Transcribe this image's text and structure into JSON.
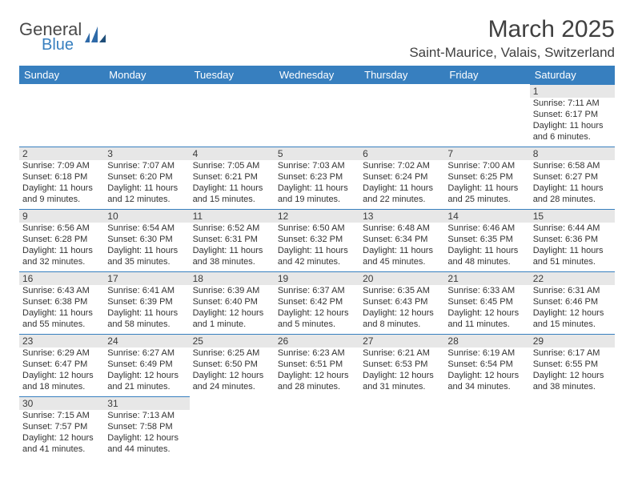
{
  "logo": {
    "primary": "General",
    "secondary": "Blue",
    "mark_color": "#2f6aa8"
  },
  "header": {
    "title": "March 2025",
    "location": "Saint-Maurice, Valais, Switzerland"
  },
  "colors": {
    "header_bg": "#377fbf",
    "header_text": "#ffffff",
    "day_shade": "#e7e7e7",
    "day_border": "#377fbf"
  },
  "weekdays": [
    "Sunday",
    "Monday",
    "Tuesday",
    "Wednesday",
    "Thursday",
    "Friday",
    "Saturday"
  ],
  "weeks": [
    [
      null,
      null,
      null,
      null,
      null,
      null,
      {
        "n": "1",
        "sunrise": "Sunrise: 7:11 AM",
        "sunset": "Sunset: 6:17 PM",
        "day": "Daylight: 11 hours and 6 minutes."
      }
    ],
    [
      {
        "n": "2",
        "sunrise": "Sunrise: 7:09 AM",
        "sunset": "Sunset: 6:18 PM",
        "day": "Daylight: 11 hours and 9 minutes."
      },
      {
        "n": "3",
        "sunrise": "Sunrise: 7:07 AM",
        "sunset": "Sunset: 6:20 PM",
        "day": "Daylight: 11 hours and 12 minutes."
      },
      {
        "n": "4",
        "sunrise": "Sunrise: 7:05 AM",
        "sunset": "Sunset: 6:21 PM",
        "day": "Daylight: 11 hours and 15 minutes."
      },
      {
        "n": "5",
        "sunrise": "Sunrise: 7:03 AM",
        "sunset": "Sunset: 6:23 PM",
        "day": "Daylight: 11 hours and 19 minutes."
      },
      {
        "n": "6",
        "sunrise": "Sunrise: 7:02 AM",
        "sunset": "Sunset: 6:24 PM",
        "day": "Daylight: 11 hours and 22 minutes."
      },
      {
        "n": "7",
        "sunrise": "Sunrise: 7:00 AM",
        "sunset": "Sunset: 6:25 PM",
        "day": "Daylight: 11 hours and 25 minutes."
      },
      {
        "n": "8",
        "sunrise": "Sunrise: 6:58 AM",
        "sunset": "Sunset: 6:27 PM",
        "day": "Daylight: 11 hours and 28 minutes."
      }
    ],
    [
      {
        "n": "9",
        "sunrise": "Sunrise: 6:56 AM",
        "sunset": "Sunset: 6:28 PM",
        "day": "Daylight: 11 hours and 32 minutes."
      },
      {
        "n": "10",
        "sunrise": "Sunrise: 6:54 AM",
        "sunset": "Sunset: 6:30 PM",
        "day": "Daylight: 11 hours and 35 minutes."
      },
      {
        "n": "11",
        "sunrise": "Sunrise: 6:52 AM",
        "sunset": "Sunset: 6:31 PM",
        "day": "Daylight: 11 hours and 38 minutes."
      },
      {
        "n": "12",
        "sunrise": "Sunrise: 6:50 AM",
        "sunset": "Sunset: 6:32 PM",
        "day": "Daylight: 11 hours and 42 minutes."
      },
      {
        "n": "13",
        "sunrise": "Sunrise: 6:48 AM",
        "sunset": "Sunset: 6:34 PM",
        "day": "Daylight: 11 hours and 45 minutes."
      },
      {
        "n": "14",
        "sunrise": "Sunrise: 6:46 AM",
        "sunset": "Sunset: 6:35 PM",
        "day": "Daylight: 11 hours and 48 minutes."
      },
      {
        "n": "15",
        "sunrise": "Sunrise: 6:44 AM",
        "sunset": "Sunset: 6:36 PM",
        "day": "Daylight: 11 hours and 51 minutes."
      }
    ],
    [
      {
        "n": "16",
        "sunrise": "Sunrise: 6:43 AM",
        "sunset": "Sunset: 6:38 PM",
        "day": "Daylight: 11 hours and 55 minutes."
      },
      {
        "n": "17",
        "sunrise": "Sunrise: 6:41 AM",
        "sunset": "Sunset: 6:39 PM",
        "day": "Daylight: 11 hours and 58 minutes."
      },
      {
        "n": "18",
        "sunrise": "Sunrise: 6:39 AM",
        "sunset": "Sunset: 6:40 PM",
        "day": "Daylight: 12 hours and 1 minute."
      },
      {
        "n": "19",
        "sunrise": "Sunrise: 6:37 AM",
        "sunset": "Sunset: 6:42 PM",
        "day": "Daylight: 12 hours and 5 minutes."
      },
      {
        "n": "20",
        "sunrise": "Sunrise: 6:35 AM",
        "sunset": "Sunset: 6:43 PM",
        "day": "Daylight: 12 hours and 8 minutes."
      },
      {
        "n": "21",
        "sunrise": "Sunrise: 6:33 AM",
        "sunset": "Sunset: 6:45 PM",
        "day": "Daylight: 12 hours and 11 minutes."
      },
      {
        "n": "22",
        "sunrise": "Sunrise: 6:31 AM",
        "sunset": "Sunset: 6:46 PM",
        "day": "Daylight: 12 hours and 15 minutes."
      }
    ],
    [
      {
        "n": "23",
        "sunrise": "Sunrise: 6:29 AM",
        "sunset": "Sunset: 6:47 PM",
        "day": "Daylight: 12 hours and 18 minutes."
      },
      {
        "n": "24",
        "sunrise": "Sunrise: 6:27 AM",
        "sunset": "Sunset: 6:49 PM",
        "day": "Daylight: 12 hours and 21 minutes."
      },
      {
        "n": "25",
        "sunrise": "Sunrise: 6:25 AM",
        "sunset": "Sunset: 6:50 PM",
        "day": "Daylight: 12 hours and 24 minutes."
      },
      {
        "n": "26",
        "sunrise": "Sunrise: 6:23 AM",
        "sunset": "Sunset: 6:51 PM",
        "day": "Daylight: 12 hours and 28 minutes."
      },
      {
        "n": "27",
        "sunrise": "Sunrise: 6:21 AM",
        "sunset": "Sunset: 6:53 PM",
        "day": "Daylight: 12 hours and 31 minutes."
      },
      {
        "n": "28",
        "sunrise": "Sunrise: 6:19 AM",
        "sunset": "Sunset: 6:54 PM",
        "day": "Daylight: 12 hours and 34 minutes."
      },
      {
        "n": "29",
        "sunrise": "Sunrise: 6:17 AM",
        "sunset": "Sunset: 6:55 PM",
        "day": "Daylight: 12 hours and 38 minutes."
      }
    ],
    [
      {
        "n": "30",
        "sunrise": "Sunrise: 7:15 AM",
        "sunset": "Sunset: 7:57 PM",
        "day": "Daylight: 12 hours and 41 minutes."
      },
      {
        "n": "31",
        "sunrise": "Sunrise: 7:13 AM",
        "sunset": "Sunset: 7:58 PM",
        "day": "Daylight: 12 hours and 44 minutes."
      },
      null,
      null,
      null,
      null,
      null
    ]
  ]
}
